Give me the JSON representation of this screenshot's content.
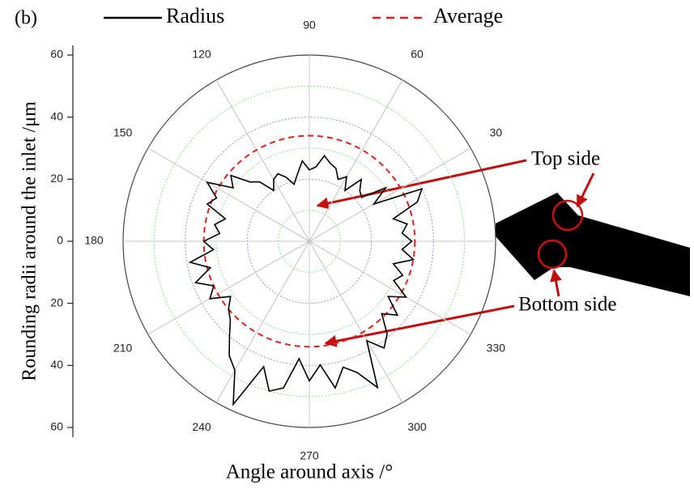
{
  "chart_data": {
    "type": "polar",
    "panel_label": "(b)",
    "x_label": "Angle around axis /°",
    "y_label": "Rounding radii around the inlet /μm",
    "x": [
      0,
      5,
      10,
      15,
      20,
      25,
      30,
      35,
      40,
      45,
      50,
      55,
      60,
      65,
      70,
      75,
      80,
      85,
      90,
      95,
      100,
      105,
      110,
      115,
      120,
      125,
      130,
      135,
      140,
      145,
      150,
      155,
      160,
      165,
      170,
      175,
      180,
      185,
      190,
      195,
      200,
      205,
      210,
      215,
      220,
      225,
      230,
      235,
      240,
      245,
      250,
      255,
      260,
      265,
      270,
      275,
      280,
      285,
      290,
      295,
      300,
      305,
      310,
      315,
      320,
      325,
      330,
      335,
      340,
      345,
      350,
      355
    ],
    "series": [
      {
        "name": "Radius",
        "color": "#000000",
        "values": [
          33,
          30,
          32,
          28,
          37,
          40,
          24,
          30,
          22,
          23,
          26,
          20,
          24,
          22,
          25,
          26,
          28,
          24,
          23,
          26,
          22,
          19,
          22,
          24,
          23,
          20,
          25,
          27,
          33,
          30,
          38,
          33,
          35,
          28,
          31,
          29,
          34,
          31,
          39,
          33,
          39,
          34,
          37,
          31,
          34,
          36,
          40,
          45,
          48,
          58,
          43,
          50,
          48,
          38,
          45,
          40,
          48,
          42,
          45,
          52,
          37,
          42,
          39,
          33,
          37,
          31,
          36,
          30,
          32,
          28,
          34,
          30
        ]
      }
    ],
    "average": {
      "name": "Average",
      "color": "#e02020",
      "value": 34
    },
    "rlim": [
      0,
      60
    ],
    "rgrid": [
      10,
      20,
      30,
      40,
      50,
      60
    ],
    "rgrid_colors": [
      "#90e090",
      "#9090e8"
    ],
    "angle_ticks": [
      90,
      60,
      30,
      330,
      300,
      270,
      240,
      210,
      180,
      150,
      120
    ],
    "ylim": [
      -60,
      60
    ],
    "yticks": [
      60,
      40,
      20,
      0,
      {
        "value": -20,
        "label": "20"
      },
      {
        "value": -40,
        "label": "40"
      },
      {
        "value": -60,
        "label": "60"
      }
    ],
    "annotations": [
      "Top side",
      "Bottom side"
    ]
  }
}
